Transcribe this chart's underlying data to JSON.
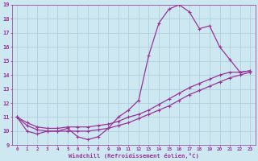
{
  "xlabel": "Windchill (Refroidissement éolien,°C)",
  "background_color": "#cde8f0",
  "grid_color": "#aaccdd",
  "line_color": "#993399",
  "xlim": [
    -0.5,
    23.5
  ],
  "ylim": [
    9,
    19
  ],
  "xticks": [
    0,
    1,
    2,
    3,
    4,
    5,
    6,
    7,
    8,
    9,
    10,
    11,
    12,
    13,
    14,
    15,
    16,
    17,
    18,
    19,
    20,
    21,
    22,
    23
  ],
  "yticks": [
    9,
    10,
    11,
    12,
    13,
    14,
    15,
    16,
    17,
    18,
    19
  ],
  "series": [
    {
      "x": [
        0,
        1,
        2,
        3,
        4,
        5,
        6,
        7,
        8,
        9,
        10,
        11,
        12,
        13,
        14,
        15,
        16,
        17,
        18,
        19,
        20,
        21,
        22,
        23
      ],
      "y": [
        11.0,
        10.0,
        9.8,
        10.0,
        10.0,
        10.2,
        9.6,
        9.4,
        9.6,
        10.2,
        11.0,
        11.5,
        12.2,
        15.4,
        17.7,
        18.7,
        19.0,
        18.5,
        17.3,
        17.5,
        16.0,
        15.1,
        14.2,
        14.3
      ]
    },
    {
      "x": [
        0,
        1,
        2,
        3,
        4,
        5,
        6,
        7,
        8,
        9,
        10,
        11,
        12,
        13,
        14,
        15,
        16,
        17,
        18,
        19,
        20,
        21,
        22,
        23
      ],
      "y": [
        11.0,
        10.6,
        10.3,
        10.2,
        10.2,
        10.3,
        10.3,
        10.3,
        10.4,
        10.5,
        10.7,
        11.0,
        11.2,
        11.5,
        11.9,
        12.3,
        12.7,
        13.1,
        13.4,
        13.7,
        14.0,
        14.2,
        14.2,
        14.3
      ]
    },
    {
      "x": [
        0,
        1,
        2,
        3,
        4,
        5,
        6,
        7,
        8,
        9,
        10,
        11,
        12,
        13,
        14,
        15,
        16,
        17,
        18,
        19,
        20,
        21,
        22,
        23
      ],
      "y": [
        11.0,
        10.4,
        10.1,
        10.0,
        10.0,
        10.0,
        10.0,
        10.0,
        10.1,
        10.2,
        10.4,
        10.6,
        10.9,
        11.2,
        11.5,
        11.8,
        12.2,
        12.6,
        12.9,
        13.2,
        13.5,
        13.8,
        14.0,
        14.2
      ]
    }
  ]
}
